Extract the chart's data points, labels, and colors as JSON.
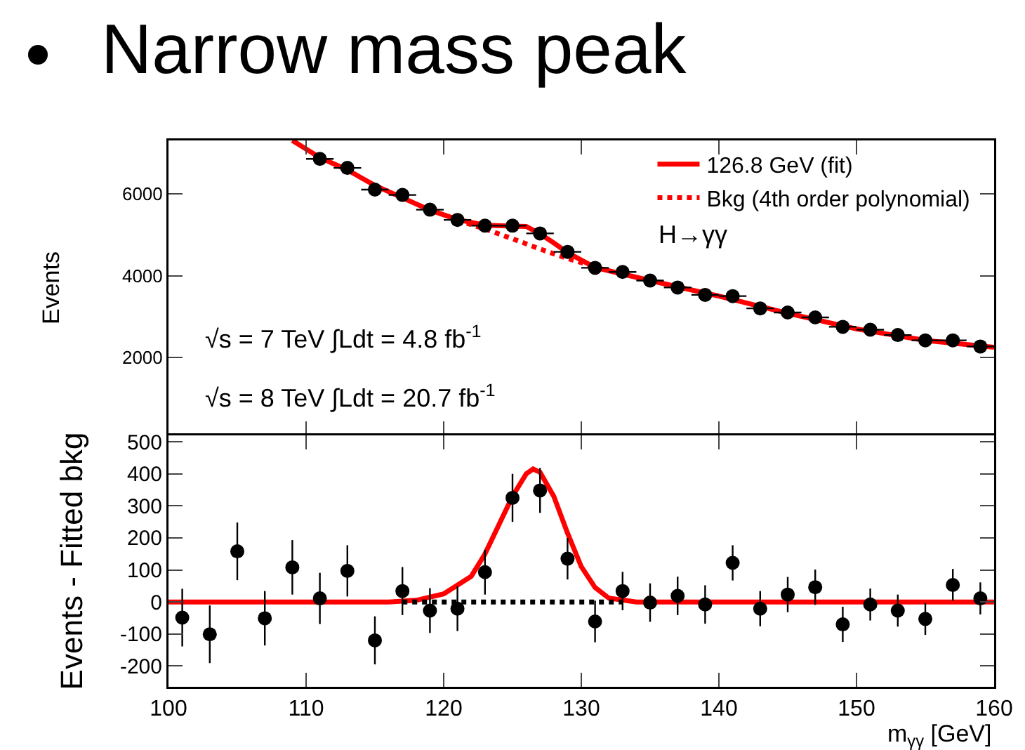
{
  "chart_data": [
    {
      "type": "scatter",
      "title": "Narrow mass peak",
      "ylabel": "Events",
      "xlim": [
        100,
        160
      ],
      "ylim": [
        100,
        7300
      ],
      "yticks": [
        2000,
        4000,
        6000
      ],
      "tick_labels": "y",
      "legend": "top right",
      "grid": false,
      "annotations": [
        "H→γγ",
        "√s = 7 TeV ∫Ldt = 4.8 fb$^{-1}$",
        "√s = 8 TeV ∫Ldt = 20.7 fb$^{-1}$"
      ],
      "series": [
        {
          "type": "line",
          "name": "126.8 GeV (fit)",
          "color": "#ff0000",
          "line_style": "solid",
          "marker": "none",
          "x": [
            109,
            111,
            113,
            115,
            117,
            119,
            121,
            123,
            125,
            126,
            127,
            128,
            129,
            131,
            135,
            140,
            145,
            150,
            155,
            160
          ],
          "values": [
            7300,
            6880,
            6580,
            6200,
            5900,
            5600,
            5370,
            5230,
            5210,
            5200,
            5020,
            4800,
            4560,
            4200,
            3880,
            3500,
            3080,
            2700,
            2420,
            2250
          ]
        },
        {
          "type": "line",
          "name": "Bkg (4th order polynomial)",
          "color": "#ff0000",
          "line_style": "dotted",
          "marker": "none",
          "x": [
            121,
            123,
            125,
            127,
            129,
            131
          ],
          "values": [
            5350,
            5140,
            4900,
            4650,
            4420,
            4220
          ]
        },
        {
          "color": "#000000",
          "marker": "circle",
          "x": [
            111,
            113,
            115,
            117,
            119,
            121,
            123,
            125,
            127,
            129,
            131,
            133,
            135,
            137,
            139,
            141,
            143,
            145,
            147,
            149,
            151,
            153,
            155,
            157,
            159
          ],
          "values": [
            6850,
            6630,
            6100,
            5970,
            5610,
            5360,
            5220,
            5220,
            5030,
            4580,
            4190,
            4090,
            3880,
            3710,
            3530,
            3500,
            3200,
            3100,
            2980,
            2750,
            2680,
            2550,
            2420,
            2420,
            2270
          ],
          "xerrors": [
            1,
            1,
            1,
            1,
            1,
            1,
            1,
            1,
            1,
            1,
            1,
            1,
            1,
            1,
            1,
            1,
            1,
            1,
            1,
            1,
            1,
            1,
            1,
            1,
            1
          ]
        }
      ]
    },
    {
      "type": "scatter",
      "xlabel": "m$_{γγ}$ [GeV]",
      "ylabel": "Events - Fitted bkg",
      "xlim": [
        100,
        160
      ],
      "xticks": [
        100,
        110,
        120,
        130,
        140,
        150,
        160
      ],
      "ylim": [
        -265,
        520
      ],
      "yticks": [
        -200,
        -100,
        0,
        100,
        200,
        300,
        400,
        500
      ],
      "grid": false,
      "series": [
        {
          "type": "line",
          "color": "#ff0000",
          "line_style": "solid",
          "marker": "none",
          "x": [
            100,
            116,
            118,
            120,
            122,
            123,
            124,
            125,
            126,
            126.5,
            127,
            128,
            129,
            130,
            131,
            132,
            134,
            160
          ],
          "values": [
            0,
            0,
            5,
            25,
            80,
            150,
            240,
            330,
            400,
            415,
            405,
            330,
            215,
            110,
            45,
            12,
            0,
            0
          ]
        },
        {
          "type": "line",
          "color": "#000000",
          "line_style": "dotted",
          "marker": "none",
          "x": [
            117,
            133
          ],
          "values": [
            0,
            0
          ]
        },
        {
          "color": "#000000",
          "marker": "circle",
          "x": [
            101,
            103,
            105,
            107,
            109,
            111,
            113,
            115,
            117,
            119,
            121,
            123,
            125,
            127,
            129,
            131,
            133,
            135,
            137,
            139,
            141,
            143,
            145,
            147,
            149,
            151,
            153,
            155,
            157,
            159
          ],
          "values": [
            -49,
            -101,
            158,
            -51,
            108,
            11,
            97,
            -120,
            34,
            -27,
            -21,
            93,
            325,
            348,
            135,
            -61,
            34,
            -2,
            19,
            -8,
            122,
            -21,
            23,
            46,
            -70,
            -8,
            -27,
            -53,
            53,
            11
          ],
          "errors": [
            90,
            90,
            90,
            85,
            85,
            80,
            80,
            75,
            75,
            70,
            70,
            70,
            75,
            70,
            65,
            65,
            60,
            60,
            60,
            60,
            55,
            55,
            55,
            55,
            55,
            50,
            50,
            50,
            50,
            50
          ]
        }
      ]
    }
  ]
}
